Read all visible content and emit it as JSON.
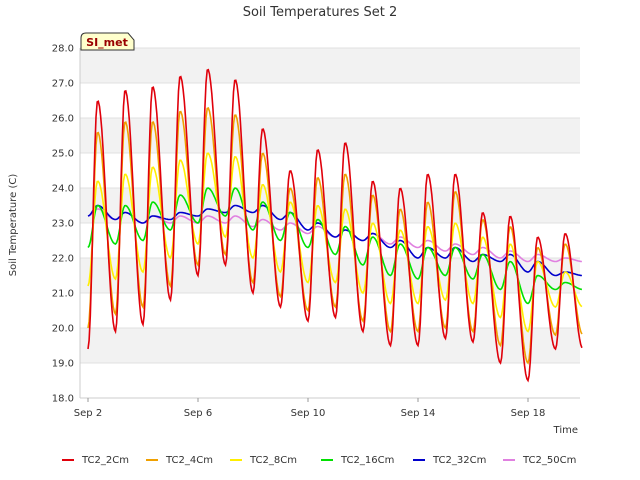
{
  "chart_data": {
    "type": "line",
    "title": "Soil Temperatures Set 2",
    "xlabel": "Time",
    "ylabel": "Soil Temperature (C)",
    "annotation": "SI_met",
    "ylim": [
      18.0,
      28.0
    ],
    "xlim": [
      "2023-09-02",
      "2023-09-20"
    ],
    "y_ticks": [
      "18.0",
      "19.0",
      "20.0",
      "21.0",
      "22.0",
      "23.0",
      "24.0",
      "25.0",
      "26.0",
      "27.0",
      "28.0"
    ],
    "x_ticks": [
      {
        "label": "Sep 2",
        "day": 0
      },
      {
        "label": "Sep 6",
        "day": 4
      },
      {
        "label": "Sep 10",
        "day": 8
      },
      {
        "label": "Sep 14",
        "day": 12
      },
      {
        "label": "Sep 18",
        "day": 16
      }
    ],
    "grid": true,
    "legend_placement": "bottom",
    "days": [
      "Sep 2",
      "Sep 3",
      "Sep 4",
      "Sep 5",
      "Sep 6",
      "Sep 7",
      "Sep 8",
      "Sep 9",
      "Sep 10",
      "Sep 11",
      "Sep 12",
      "Sep 13",
      "Sep 14",
      "Sep 15",
      "Sep 16",
      "Sep 17",
      "Sep 18",
      "Sep 19"
    ],
    "series": [
      {
        "name": "TC2_2Cm",
        "color": "#e0000b",
        "daily_max": [
          26.5,
          26.8,
          26.9,
          27.2,
          27.4,
          27.1,
          25.7,
          24.5,
          25.1,
          25.3,
          24.2,
          24.0,
          24.4,
          24.4,
          23.3,
          23.2,
          22.6,
          22.7
        ],
        "daily_min": [
          19.4,
          19.9,
          20.1,
          20.8,
          21.5,
          21.8,
          21.0,
          20.6,
          20.2,
          20.3,
          19.9,
          19.5,
          19.5,
          19.7,
          19.6,
          19.0,
          18.5,
          19.4
        ]
      },
      {
        "name": "TC2_4Cm",
        "color": "#f0a000",
        "daily_max": [
          25.6,
          25.9,
          25.9,
          26.2,
          26.3,
          26.1,
          25.0,
          24.0,
          24.3,
          24.4,
          23.8,
          23.4,
          23.6,
          23.9,
          23.1,
          22.9,
          22.3,
          22.4
        ],
        "daily_min": [
          20.0,
          20.4,
          20.6,
          21.2,
          21.8,
          22.1,
          21.3,
          20.9,
          20.5,
          20.6,
          20.2,
          19.9,
          19.9,
          20.0,
          19.9,
          19.5,
          19.0,
          19.8
        ]
      },
      {
        "name": "TC2_8Cm",
        "color": "#ffee00",
        "daily_max": [
          24.2,
          24.4,
          24.6,
          24.8,
          25.0,
          24.9,
          24.1,
          23.6,
          23.5,
          23.4,
          23.0,
          22.8,
          22.9,
          23.0,
          22.6,
          22.4,
          21.9,
          21.6
        ],
        "daily_min": [
          21.2,
          21.4,
          21.6,
          22.0,
          22.4,
          22.6,
          22.0,
          21.6,
          21.3,
          21.3,
          21.0,
          20.7,
          20.7,
          20.8,
          20.7,
          20.3,
          19.9,
          20.6
        ]
      },
      {
        "name": "TC2_16Cm",
        "color": "#00e000",
        "daily_max": [
          23.5,
          23.5,
          23.6,
          23.8,
          24.0,
          24.0,
          23.6,
          23.3,
          23.1,
          22.9,
          22.6,
          22.4,
          22.3,
          22.3,
          22.1,
          21.9,
          21.5,
          21.3
        ],
        "daily_min": [
          22.3,
          22.4,
          22.5,
          22.8,
          23.0,
          23.2,
          22.8,
          22.5,
          22.3,
          22.1,
          21.8,
          21.5,
          21.4,
          21.5,
          21.4,
          21.1,
          20.7,
          21.1
        ]
      },
      {
        "name": "TC2_32Cm",
        "color": "#0000cc",
        "daily_max": [
          23.5,
          23.3,
          23.2,
          23.3,
          23.4,
          23.5,
          23.5,
          23.3,
          23.0,
          22.8,
          22.7,
          22.5,
          22.3,
          22.3,
          22.1,
          22.1,
          21.9,
          21.6
        ],
        "daily_min": [
          23.2,
          23.1,
          23.0,
          23.1,
          23.2,
          23.3,
          23.3,
          23.1,
          22.8,
          22.6,
          22.5,
          22.3,
          22.0,
          22.0,
          21.9,
          21.9,
          21.6,
          21.5
        ]
      },
      {
        "name": "TC2_50Cm",
        "color": "#e080e0",
        "daily_max": [
          23.4,
          23.3,
          23.2,
          23.2,
          23.2,
          23.2,
          23.1,
          23.0,
          22.9,
          22.8,
          22.7,
          22.6,
          22.5,
          22.4,
          22.3,
          22.2,
          22.1,
          22.0
        ],
        "daily_min": [
          23.2,
          23.1,
          23.0,
          23.0,
          23.0,
          23.0,
          22.9,
          22.8,
          22.7,
          22.6,
          22.5,
          22.4,
          22.3,
          22.2,
          22.1,
          22.0,
          21.9,
          21.9
        ]
      }
    ]
  }
}
